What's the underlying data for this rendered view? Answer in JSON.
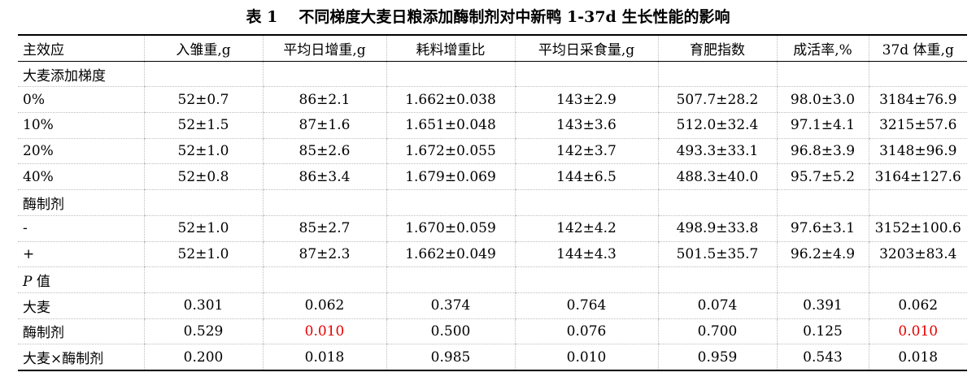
{
  "table": {
    "caption_num": "表 1",
    "caption_text": "不同梯度大麦日粮添加酶制剂对中新鸭 1-37d 生长性能的影响",
    "headers": [
      "主效应",
      "入雏重,g",
      "平均日增重,g",
      "耗料增重比",
      "平均日采食量,g",
      "育肥指数",
      "成活率,%",
      "37d 体重,g"
    ],
    "section_barley": "大麦添加梯度",
    "barley_rows": [
      {
        "label": "0%",
        "cells": [
          "52±0.7",
          "86±2.1",
          "1.662±0.038",
          "143±2.9",
          "507.7±28.2",
          "98.0±3.0",
          "3184±76.9"
        ]
      },
      {
        "label": "10%",
        "cells": [
          "52±1.5",
          "87±1.6",
          "1.651±0.048",
          "143±3.6",
          "512.0±32.4",
          "97.1±4.1",
          "3215±57.6"
        ]
      },
      {
        "label": "20%",
        "cells": [
          "52±1.0",
          "85±2.6",
          "1.672±0.055",
          "142±3.7",
          "493.3±33.1",
          "96.8±3.9",
          "3148±96.9"
        ]
      },
      {
        "label": "40%",
        "cells": [
          "52±0.8",
          "86±3.4",
          "1.679±0.069",
          "144±6.5",
          "488.3±40.0",
          "95.7±5.2",
          "3164±127.6"
        ]
      }
    ],
    "section_enzyme": "酶制剂",
    "enzyme_rows": [
      {
        "label": "-",
        "cells": [
          "52±1.0",
          "85±2.7",
          "1.670±0.059",
          "142±4.2",
          "498.9±33.8",
          "97.6±3.1",
          "3152±100.6"
        ]
      },
      {
        "label": "+",
        "cells": [
          "52±1.0",
          "87±2.3",
          "1.662±0.049",
          "144±4.3",
          "501.5±35.7",
          "96.2±4.9",
          "3203±83.4"
        ]
      }
    ],
    "section_p_letter": "P",
    "section_p_rest": " 值",
    "p_rows": [
      {
        "label": "大麦",
        "cells": [
          "0.301",
          "0.062",
          "0.374",
          "0.764",
          "0.074",
          "0.391",
          "0.062"
        ]
      },
      {
        "label": "酶制剂",
        "cells": [
          "0.529",
          "0.010",
          "0.500",
          "0.076",
          "0.700",
          "0.125",
          "0.010"
        ]
      },
      {
        "label": "大麦×酶制剂",
        "cells": [
          "0.200",
          "0.018",
          "0.985",
          "0.010",
          "0.959",
          "0.543",
          "0.018"
        ]
      }
    ],
    "highlight_color": "#e60000"
  }
}
